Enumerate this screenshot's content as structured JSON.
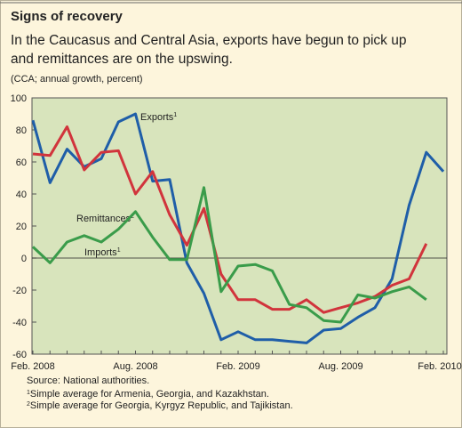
{
  "chart_data": {
    "type": "line",
    "title": "Signs of recovery",
    "subtitle": [
      "In the Caucasus and Central Asia, exports have begun to pick up",
      "and remittances are on the upswing."
    ],
    "unit_note": "(CCA; annual growth, percent)",
    "categories": [
      "Feb. 2008",
      null,
      null,
      null,
      null,
      null,
      "Aug. 2008",
      null,
      null,
      null,
      null,
      null,
      "Feb. 2009",
      null,
      null,
      null,
      null,
      null,
      "Aug. 2009",
      null,
      null,
      null,
      null,
      null,
      "Feb. 2010"
    ],
    "series": [
      {
        "name": "Exports",
        "note": "1",
        "color": "#1f5ea8",
        "values": [
          86,
          47,
          68,
          57,
          62,
          85,
          90,
          48,
          49,
          -3,
          -22,
          -51,
          -46,
          -51,
          -51,
          -52,
          -53,
          -45,
          -44,
          -37,
          -31,
          -13,
          33,
          66,
          54
        ]
      },
      {
        "name": "Remittances",
        "note": "2",
        "color": "#d1343c",
        "values": [
          65,
          64,
          82,
          55,
          66,
          67,
          40,
          54,
          27,
          8,
          31,
          -10,
          -26,
          -26,
          -32,
          -32,
          -26,
          -34,
          -31,
          -28,
          -24,
          -17,
          -13,
          9,
          null
        ]
      },
      {
        "name": "Imports",
        "note": "1",
        "color": "#3a9c4a",
        "values": [
          7,
          -3,
          10,
          14,
          10,
          18,
          29,
          13,
          -1,
          -1,
          44,
          -21,
          -5,
          -4,
          -8,
          -29,
          -31,
          -39,
          -40,
          -23,
          -25,
          -21,
          -18,
          -26,
          null
        ]
      }
    ],
    "ylim": [
      -60,
      100
    ],
    "yticks": [
      100,
      80,
      60,
      40,
      20,
      0,
      -20,
      -40,
      -60
    ],
    "zero_line": true,
    "source": "Source: National authorities.",
    "footnotes": [
      {
        "mark": "1",
        "text": "Simple average for Armenia, Georgia, and Kazakhstan."
      },
      {
        "mark": "2",
        "text": "Simple average for Georgia, Kyrgyz Republic, and Tajikistan."
      }
    ]
  }
}
